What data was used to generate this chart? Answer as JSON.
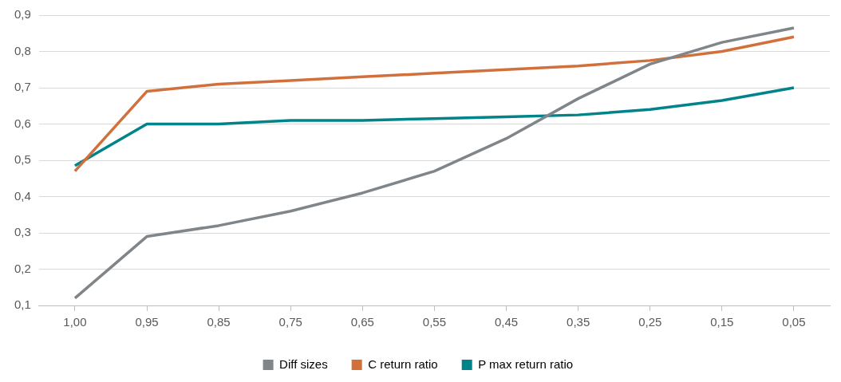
{
  "chart_data": {
    "type": "line",
    "categories": [
      "1,00",
      "0,95",
      "0,85",
      "0,75",
      "0,65",
      "0,55",
      "0,45",
      "0,35",
      "0,25",
      "0,15",
      "0,05"
    ],
    "series": [
      {
        "name": "Diff sizes",
        "color": "#7f8589",
        "values": [
          0.12,
          0.29,
          0.32,
          0.36,
          0.41,
          0.47,
          0.56,
          0.67,
          0.765,
          0.825,
          0.865
        ]
      },
      {
        "name": "C return ratio",
        "color": "#d2703b",
        "values": [
          0.47,
          0.69,
          0.71,
          0.72,
          0.73,
          0.74,
          0.75,
          0.76,
          0.775,
          0.8,
          0.84
        ]
      },
      {
        "name": "P max return ratio",
        "color": "#00848a",
        "values": [
          0.485,
          0.6,
          0.6,
          0.61,
          0.61,
          0.615,
          0.62,
          0.625,
          0.64,
          0.665,
          0.7
        ]
      }
    ],
    "ylim": [
      0.1,
      0.9
    ],
    "yticks": [
      {
        "value": 0.1,
        "label": "0,1"
      },
      {
        "value": 0.2,
        "label": "0,2"
      },
      {
        "value": 0.3,
        "label": "0,3"
      },
      {
        "value": 0.4,
        "label": "0,4"
      },
      {
        "value": 0.5,
        "label": "0,5"
      },
      {
        "value": 0.6,
        "label": "0,6"
      },
      {
        "value": 0.7,
        "label": "0,7"
      },
      {
        "value": 0.8,
        "label": "0,8"
      },
      {
        "value": 0.9,
        "label": "0,9"
      }
    ],
    "grid": "y",
    "legend": "bottom",
    "marker": "none",
    "line_style": "solid"
  }
}
